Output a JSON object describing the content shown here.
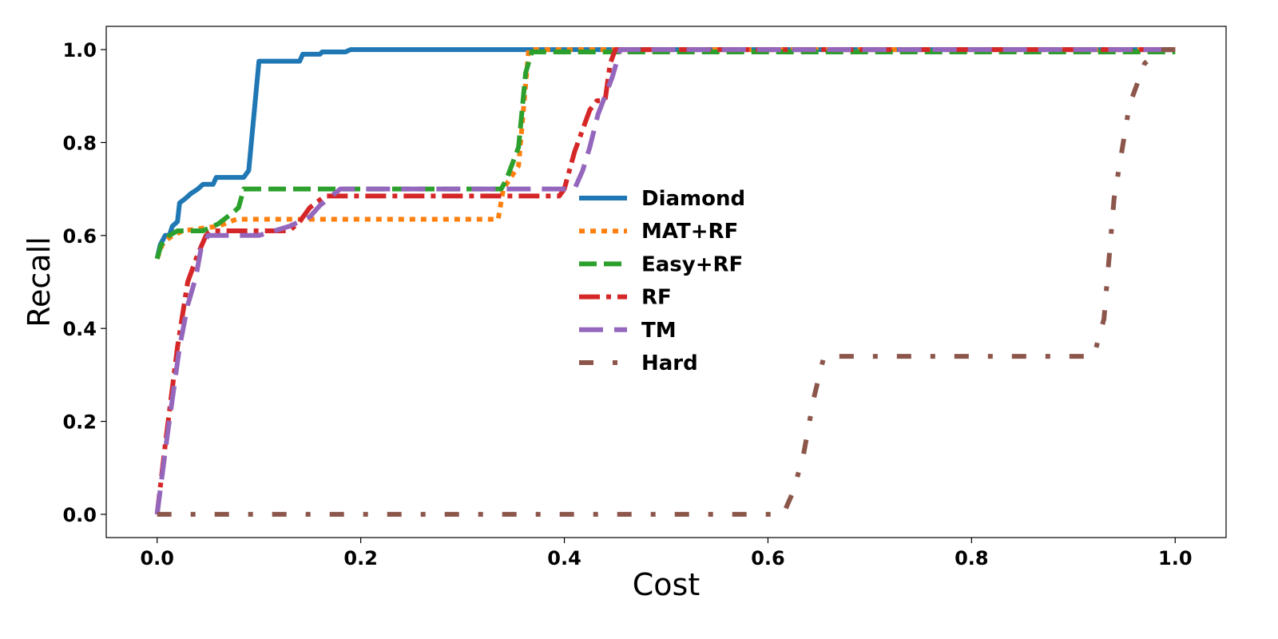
{
  "chart_data": {
    "type": "line",
    "title": "",
    "xlabel": "Cost",
    "ylabel": "Recall",
    "xlim": [
      -0.05,
      1.05
    ],
    "ylim": [
      -0.05,
      1.05
    ],
    "xticks": [
      0.0,
      0.2,
      0.4,
      0.6,
      0.8,
      1.0
    ],
    "xtick_labels": [
      "0.0",
      "0.2",
      "0.4",
      "0.6",
      "0.8",
      "1.0"
    ],
    "yticks": [
      0.0,
      0.2,
      0.4,
      0.6,
      0.8,
      1.0
    ],
    "ytick_labels": [
      "0.0",
      "0.2",
      "0.4",
      "0.6",
      "0.8",
      "1.0"
    ],
    "grid": false,
    "legend_position": "center",
    "series": [
      {
        "name": "Diamond",
        "color": "#1f77b4",
        "style": "solid",
        "points": [
          [
            0.0,
            0.55
          ],
          [
            0.003,
            0.58
          ],
          [
            0.008,
            0.6
          ],
          [
            0.012,
            0.6
          ],
          [
            0.015,
            0.62
          ],
          [
            0.02,
            0.63
          ],
          [
            0.022,
            0.67
          ],
          [
            0.028,
            0.68
          ],
          [
            0.033,
            0.69
          ],
          [
            0.04,
            0.7
          ],
          [
            0.045,
            0.71
          ],
          [
            0.055,
            0.71
          ],
          [
            0.058,
            0.725
          ],
          [
            0.085,
            0.725
          ],
          [
            0.09,
            0.74
          ],
          [
            0.1,
            0.975
          ],
          [
            0.14,
            0.975
          ],
          [
            0.143,
            0.99
          ],
          [
            0.16,
            0.99
          ],
          [
            0.162,
            0.995
          ],
          [
            0.185,
            0.995
          ],
          [
            0.19,
            1.0
          ],
          [
            1.0,
            1.0
          ]
        ]
      },
      {
        "name": "MAT+RF",
        "color": "#ff7f0e",
        "style": "dotted",
        "points": [
          [
            0.0,
            0.55
          ],
          [
            0.005,
            0.58
          ],
          [
            0.012,
            0.595
          ],
          [
            0.025,
            0.61
          ],
          [
            0.06,
            0.62
          ],
          [
            0.078,
            0.635
          ],
          [
            0.335,
            0.635
          ],
          [
            0.34,
            0.7
          ],
          [
            0.355,
            0.75
          ],
          [
            0.365,
            1.0
          ],
          [
            1.0,
            1.0
          ]
        ]
      },
      {
        "name": "Easy+RF",
        "color": "#2ca02c",
        "style": "dashed",
        "points": [
          [
            0.0,
            0.55
          ],
          [
            0.004,
            0.58
          ],
          [
            0.012,
            0.6
          ],
          [
            0.02,
            0.61
          ],
          [
            0.045,
            0.61
          ],
          [
            0.06,
            0.625
          ],
          [
            0.075,
            0.65
          ],
          [
            0.08,
            0.66
          ],
          [
            0.085,
            0.7
          ],
          [
            0.338,
            0.7
          ],
          [
            0.343,
            0.72
          ],
          [
            0.355,
            0.79
          ],
          [
            0.362,
            0.95
          ],
          [
            0.368,
            0.995
          ],
          [
            1.0,
            0.995
          ]
        ]
      },
      {
        "name": "RF",
        "color": "#d62728",
        "style": "dashdot",
        "points": [
          [
            0.0,
            0.0
          ],
          [
            0.008,
            0.15
          ],
          [
            0.02,
            0.36
          ],
          [
            0.03,
            0.5
          ],
          [
            0.04,
            0.56
          ],
          [
            0.048,
            0.6
          ],
          [
            0.053,
            0.61
          ],
          [
            0.13,
            0.61
          ],
          [
            0.14,
            0.63
          ],
          [
            0.15,
            0.66
          ],
          [
            0.165,
            0.685
          ],
          [
            0.395,
            0.685
          ],
          [
            0.4,
            0.7
          ],
          [
            0.41,
            0.78
          ],
          [
            0.425,
            0.87
          ],
          [
            0.432,
            0.89
          ],
          [
            0.44,
            0.89
          ],
          [
            0.445,
            0.97
          ],
          [
            0.45,
            1.0
          ],
          [
            1.0,
            1.0
          ]
        ]
      },
      {
        "name": "TM",
        "color": "#9467bd",
        "style": "longdash",
        "points": [
          [
            0.0,
            0.0
          ],
          [
            0.01,
            0.17
          ],
          [
            0.022,
            0.36
          ],
          [
            0.03,
            0.45
          ],
          [
            0.038,
            0.51
          ],
          [
            0.043,
            0.57
          ],
          [
            0.05,
            0.6
          ],
          [
            0.08,
            0.6
          ],
          [
            0.1,
            0.6
          ],
          [
            0.13,
            0.62
          ],
          [
            0.15,
            0.64
          ],
          [
            0.16,
            0.665
          ],
          [
            0.18,
            0.7
          ],
          [
            0.41,
            0.7
          ],
          [
            0.418,
            0.74
          ],
          [
            0.425,
            0.79
          ],
          [
            0.433,
            0.86
          ],
          [
            0.44,
            0.9
          ],
          [
            0.447,
            0.94
          ],
          [
            0.455,
            1.0
          ],
          [
            1.0,
            1.0
          ]
        ]
      },
      {
        "name": "Hard",
        "color": "#8c564b",
        "style": "loosedashdot",
        "points": [
          [
            0.0,
            0.0
          ],
          [
            0.615,
            0.0
          ],
          [
            0.625,
            0.05
          ],
          [
            0.635,
            0.13
          ],
          [
            0.645,
            0.25
          ],
          [
            0.655,
            0.34
          ],
          [
            0.92,
            0.34
          ],
          [
            0.93,
            0.42
          ],
          [
            0.94,
            0.68
          ],
          [
            0.955,
            0.88
          ],
          [
            0.97,
            0.97
          ],
          [
            0.985,
            1.0
          ],
          [
            1.0,
            1.0
          ]
        ]
      }
    ]
  }
}
